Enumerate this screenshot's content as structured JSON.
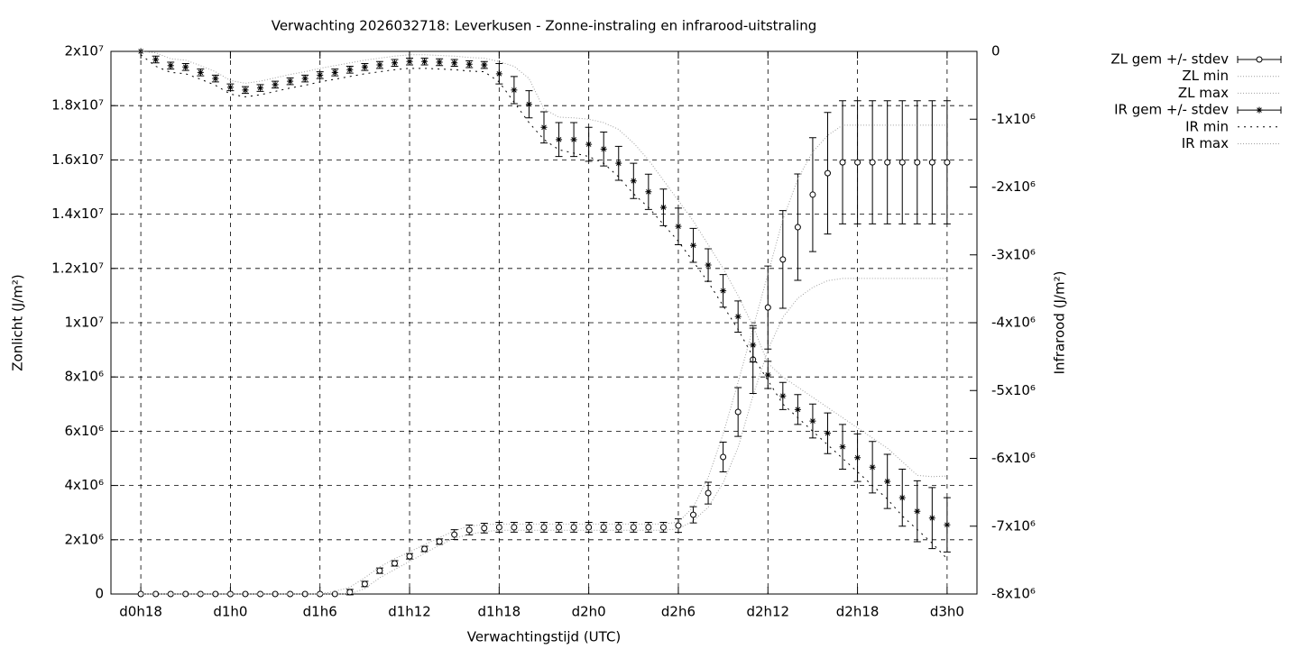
{
  "chart_data": {
    "type": "errorbar",
    "title": "Verwachting 2026032718: Leverkusen - Zonne-instraling en infrarood-uitstraling",
    "xlabel": "Verwachtingstijd (UTC)",
    "ylabel": "Zonlicht (J/m²)",
    "y2label": "Infrarood (J/m²)",
    "categories": [
      "d0h18",
      null,
      null,
      null,
      null,
      null,
      "d1h0",
      null,
      null,
      null,
      null,
      null,
      "d1h6",
      null,
      null,
      null,
      null,
      null,
      "d1h12",
      null,
      null,
      null,
      null,
      null,
      "d1h18",
      null,
      null,
      null,
      null,
      null,
      "d2h0",
      null,
      null,
      null,
      null,
      null,
      "d2h6",
      null,
      null,
      null,
      null,
      null,
      "d2h12",
      null,
      null,
      null,
      null,
      null,
      "d2h18",
      null,
      null,
      null,
      null,
      null,
      "d3h0"
    ],
    "ylim": [
      0,
      20000000
    ],
    "yticks": [
      {
        "value": 0,
        "label": "0"
      },
      {
        "value": 2000000,
        "label": "2x10⁶"
      },
      {
        "value": 4000000,
        "label": "4x10⁶"
      },
      {
        "value": 6000000,
        "label": "6x10⁶"
      },
      {
        "value": 8000000,
        "label": "8x10⁶"
      },
      {
        "value": 10000000,
        "label": "1x10⁷"
      },
      {
        "value": 12000000,
        "label": "1.2x10⁷"
      },
      {
        "value": 14000000,
        "label": "1.4x10⁷"
      },
      {
        "value": 16000000,
        "label": "1.6x10⁷"
      },
      {
        "value": 18000000,
        "label": "1.8x10⁷"
      },
      {
        "value": 20000000,
        "label": "2x10⁷"
      }
    ],
    "y2lim": [
      -8000000,
      0
    ],
    "y2ticks": [
      {
        "value": 0,
        "label": "0"
      },
      {
        "value": -1000000,
        "label": "-1x10⁶"
      },
      {
        "value": -2000000,
        "label": "-2x10⁶"
      },
      {
        "value": -3000000,
        "label": "-3x10⁶"
      },
      {
        "value": -4000000,
        "label": "-4x10⁶"
      },
      {
        "value": -5000000,
        "label": "-5x10⁶"
      },
      {
        "value": -6000000,
        "label": "-6x10⁶"
      },
      {
        "value": -7000000,
        "label": "-7x10⁶"
      },
      {
        "value": -8000000,
        "label": "-8x10⁶"
      }
    ],
    "grid": true,
    "legend": "right",
    "series": [
      {
        "name": "ZL gem +/- stdev",
        "color": "#000000",
        "marker": "circle",
        "values": [
          0,
          0,
          0,
          0,
          0,
          0,
          0,
          0,
          0,
          0,
          0,
          0,
          0,
          0,
          70000,
          370000,
          860000,
          1130000,
          1390000,
          1660000,
          1930000,
          2190000,
          2360000,
          2430000,
          2460000,
          2460000,
          2460000,
          2460000,
          2460000,
          2460000,
          2460000,
          2460000,
          2460000,
          2460000,
          2460000,
          2460000,
          2520000,
          2920000,
          3720000,
          5050000,
          6710000,
          8640000,
          10560000,
          12330000,
          13520000,
          14720000,
          15510000,
          15910000,
          15910000,
          15910000,
          15910000,
          15910000,
          15910000,
          15910000,
          15910000
        ],
        "errors": [
          0,
          0,
          0,
          0,
          0,
          0,
          0,
          0,
          0,
          0,
          0,
          0,
          0,
          0,
          100000,
          100000,
          100000,
          100000,
          100000,
          100000,
          100000,
          180000,
          180000,
          180000,
          180000,
          180000,
          180000,
          180000,
          180000,
          180000,
          180000,
          180000,
          180000,
          180000,
          180000,
          180000,
          250000,
          300000,
          400000,
          550000,
          900000,
          1250000,
          1530000,
          1800000,
          1960000,
          2100000,
          2240000,
          2270000,
          2270000,
          2270000,
          2270000,
          2270000,
          2270000,
          2270000,
          2270000
        ]
      },
      {
        "name": "ZL min",
        "color": "#a0a0a0",
        "marker": "none",
        "values": [
          0,
          0,
          0,
          0,
          0,
          0,
          0,
          0,
          0,
          0,
          0,
          0,
          0,
          0,
          0,
          200000,
          600000,
          900000,
          1200000,
          1500000,
          1800000,
          2050000,
          2200000,
          2300000,
          2350000,
          2350000,
          2350000,
          2350000,
          2350000,
          2350000,
          2350000,
          2350000,
          2350000,
          2350000,
          2350000,
          2350000,
          2400000,
          2700000,
          3200000,
          4100000,
          5400000,
          7300000,
          9000000,
          10200000,
          10900000,
          11300000,
          11550000,
          11630000,
          11630000,
          11630000,
          11630000,
          11630000,
          11630000,
          11630000,
          11630000
        ]
      },
      {
        "name": "ZL max",
        "color": "#a0a0a0",
        "marker": "none",
        "values": [
          0,
          0,
          0,
          0,
          0,
          0,
          0,
          0,
          0,
          0,
          0,
          0,
          0,
          100000,
          250000,
          600000,
          1000000,
          1300000,
          1550000,
          1820000,
          2080000,
          2330000,
          2500000,
          2560000,
          2580000,
          2580000,
          2580000,
          2580000,
          2580000,
          2580000,
          2580000,
          2580000,
          2580000,
          2580000,
          2580000,
          2580000,
          2650000,
          3200000,
          4300000,
          5900000,
          7800000,
          9800000,
          11800000,
          13800000,
          15300000,
          16300000,
          16900000,
          17280000,
          17280000,
          17280000,
          17280000,
          17280000,
          17280000,
          17280000,
          17280000
        ]
      },
      {
        "name": "IR gem +/- stdev",
        "color": "#000000",
        "marker": "asterisk",
        "axis": "y2",
        "values": [
          0,
          -120000,
          -210000,
          -230000,
          -310000,
          -400000,
          -530000,
          -570000,
          -540000,
          -490000,
          -440000,
          -400000,
          -350000,
          -310000,
          -270000,
          -230000,
          -200000,
          -170000,
          -150000,
          -150000,
          -160000,
          -170000,
          -190000,
          -200000,
          -330000,
          -570000,
          -780000,
          -1120000,
          -1300000,
          -1300000,
          -1370000,
          -1440000,
          -1650000,
          -1910000,
          -2070000,
          -2300000,
          -2580000,
          -2860000,
          -3150000,
          -3530000,
          -3910000,
          -4330000,
          -4770000,
          -5080000,
          -5280000,
          -5450000,
          -5630000,
          -5830000,
          -5990000,
          -6130000,
          -6340000,
          -6580000,
          -6780000,
          -6880000,
          -6980000
        ],
        "errors": [
          0,
          50000,
          50000,
          50000,
          50000,
          50000,
          50000,
          50000,
          50000,
          50000,
          50000,
          50000,
          50000,
          50000,
          50000,
          50000,
          50000,
          50000,
          50000,
          50000,
          50000,
          50000,
          50000,
          50000,
          150000,
          200000,
          200000,
          230000,
          250000,
          250000,
          250000,
          250000,
          250000,
          260000,
          260000,
          270000,
          270000,
          250000,
          240000,
          240000,
          230000,
          250000,
          200000,
          200000,
          220000,
          250000,
          300000,
          330000,
          350000,
          380000,
          400000,
          420000,
          450000,
          450000,
          400000
        ]
      },
      {
        "name": "IR min",
        "color": "#000000",
        "marker": "none",
        "axis": "y2",
        "values": [
          -50000,
          -220000,
          -310000,
          -330000,
          -410000,
          -500000,
          -630000,
          -670000,
          -640000,
          -590000,
          -540000,
          -500000,
          -450000,
          -410000,
          -370000,
          -330000,
          -300000,
          -270000,
          -250000,
          -250000,
          -260000,
          -270000,
          -290000,
          -300000,
          -450000,
          -750000,
          -1050000,
          -1300000,
          -1450000,
          -1500000,
          -1550000,
          -1650000,
          -1850000,
          -2100000,
          -2300000,
          -2550000,
          -2800000,
          -3100000,
          -3400000,
          -3750000,
          -4100000,
          -4500000,
          -4850000,
          -5200000,
          -5400000,
          -5600000,
          -5800000,
          -6000000,
          -6200000,
          -6400000,
          -6600000,
          -6850000,
          -7050000,
          -7250000,
          -7480000
        ]
      },
      {
        "name": "IR max",
        "color": "#a0a0a0",
        "marker": "none",
        "axis": "y2",
        "values": [
          0,
          -20000,
          -110000,
          -130000,
          -210000,
          -300000,
          -430000,
          -470000,
          -440000,
          -390000,
          -340000,
          -300000,
          -250000,
          -210000,
          -170000,
          -130000,
          -100000,
          -70000,
          -50000,
          -50000,
          -60000,
          -70000,
          -90000,
          -100000,
          -150000,
          -220000,
          -400000,
          -850000,
          -970000,
          -980000,
          -1000000,
          -1050000,
          -1150000,
          -1350000,
          -1600000,
          -1900000,
          -2200000,
          -2500000,
          -2850000,
          -3200000,
          -3600000,
          -4050000,
          -4600000,
          -4800000,
          -4950000,
          -5100000,
          -5250000,
          -5400000,
          -5550000,
          -5700000,
          -5850000,
          -6050000,
          -6250000,
          -6270000,
          -6260000
        ]
      }
    ]
  }
}
